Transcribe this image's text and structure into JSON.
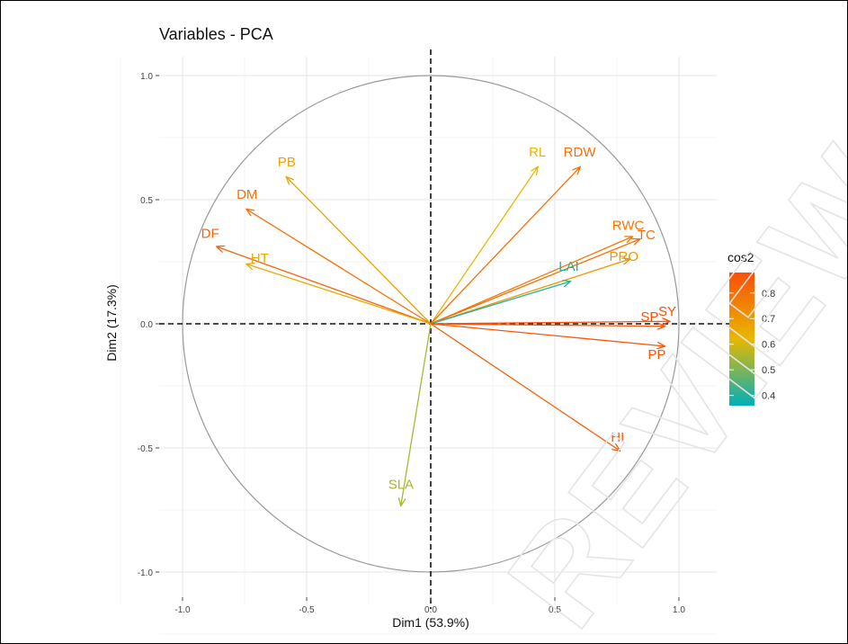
{
  "chart_data": {
    "type": "scatter",
    "subtype": "pca-variable-correlation-circle",
    "title": "Variables - PCA",
    "xlabel": "Dim1 (53.9%)",
    "ylabel": "Dim2 (17.3%)",
    "xlim": [
      -1.0,
      1.0
    ],
    "ylim": [
      -1.0,
      1.0
    ],
    "x_ticks": [
      "-1.0",
      "-0.5",
      "0.0",
      "0.5",
      "1.0"
    ],
    "y_ticks": [
      "1.0",
      "0.5",
      "0.0",
      "-0.5",
      "-1.0"
    ],
    "grid": true,
    "legend": {
      "title": "cos2",
      "placement": "right",
      "ticks": [
        "0.8",
        "0.7",
        "0.6",
        "0.5",
        "0.4"
      ],
      "range": [
        0.36,
        0.88
      ],
      "colors": [
        "#00AFBB",
        "#E7B800",
        "#FC4E07"
      ]
    },
    "variables": [
      {
        "name": "PB",
        "x": -0.58,
        "y": 0.59,
        "cos2": 0.68
      },
      {
        "name": "DM",
        "x": -0.74,
        "y": 0.46,
        "cos2": 0.8
      },
      {
        "name": "DF",
        "x": -0.86,
        "y": 0.31,
        "cos2": 0.83
      },
      {
        "name": "HT",
        "x": -0.74,
        "y": 0.24,
        "cos2": 0.66
      },
      {
        "name": "RL",
        "x": 0.43,
        "y": 0.63,
        "cos2": 0.62
      },
      {
        "name": "RDW",
        "x": 0.6,
        "y": 0.63,
        "cos2": 0.8
      },
      {
        "name": "RWC",
        "x": 0.81,
        "y": 0.35,
        "cos2": 0.78
      },
      {
        "name": "TC",
        "x": 0.84,
        "y": 0.34,
        "cos2": 0.8
      },
      {
        "name": "PRO",
        "x": 0.8,
        "y": 0.26,
        "cos2": 0.7
      },
      {
        "name": "LAI",
        "x": 0.56,
        "y": 0.17,
        "cos2": 0.4
      },
      {
        "name": "SY",
        "x": 0.96,
        "y": 0.01,
        "cos2": 0.88
      },
      {
        "name": "SP",
        "x": 0.94,
        "y": -0.01,
        "cos2": 0.87
      },
      {
        "name": "PP",
        "x": 0.94,
        "y": -0.09,
        "cos2": 0.86
      },
      {
        "name": "HI",
        "x": 0.76,
        "y": -0.51,
        "cos2": 0.84
      },
      {
        "name": "SLA",
        "x": -0.12,
        "y": -0.73,
        "cos2": 0.55
      }
    ],
    "watermark": "REVIEW"
  }
}
